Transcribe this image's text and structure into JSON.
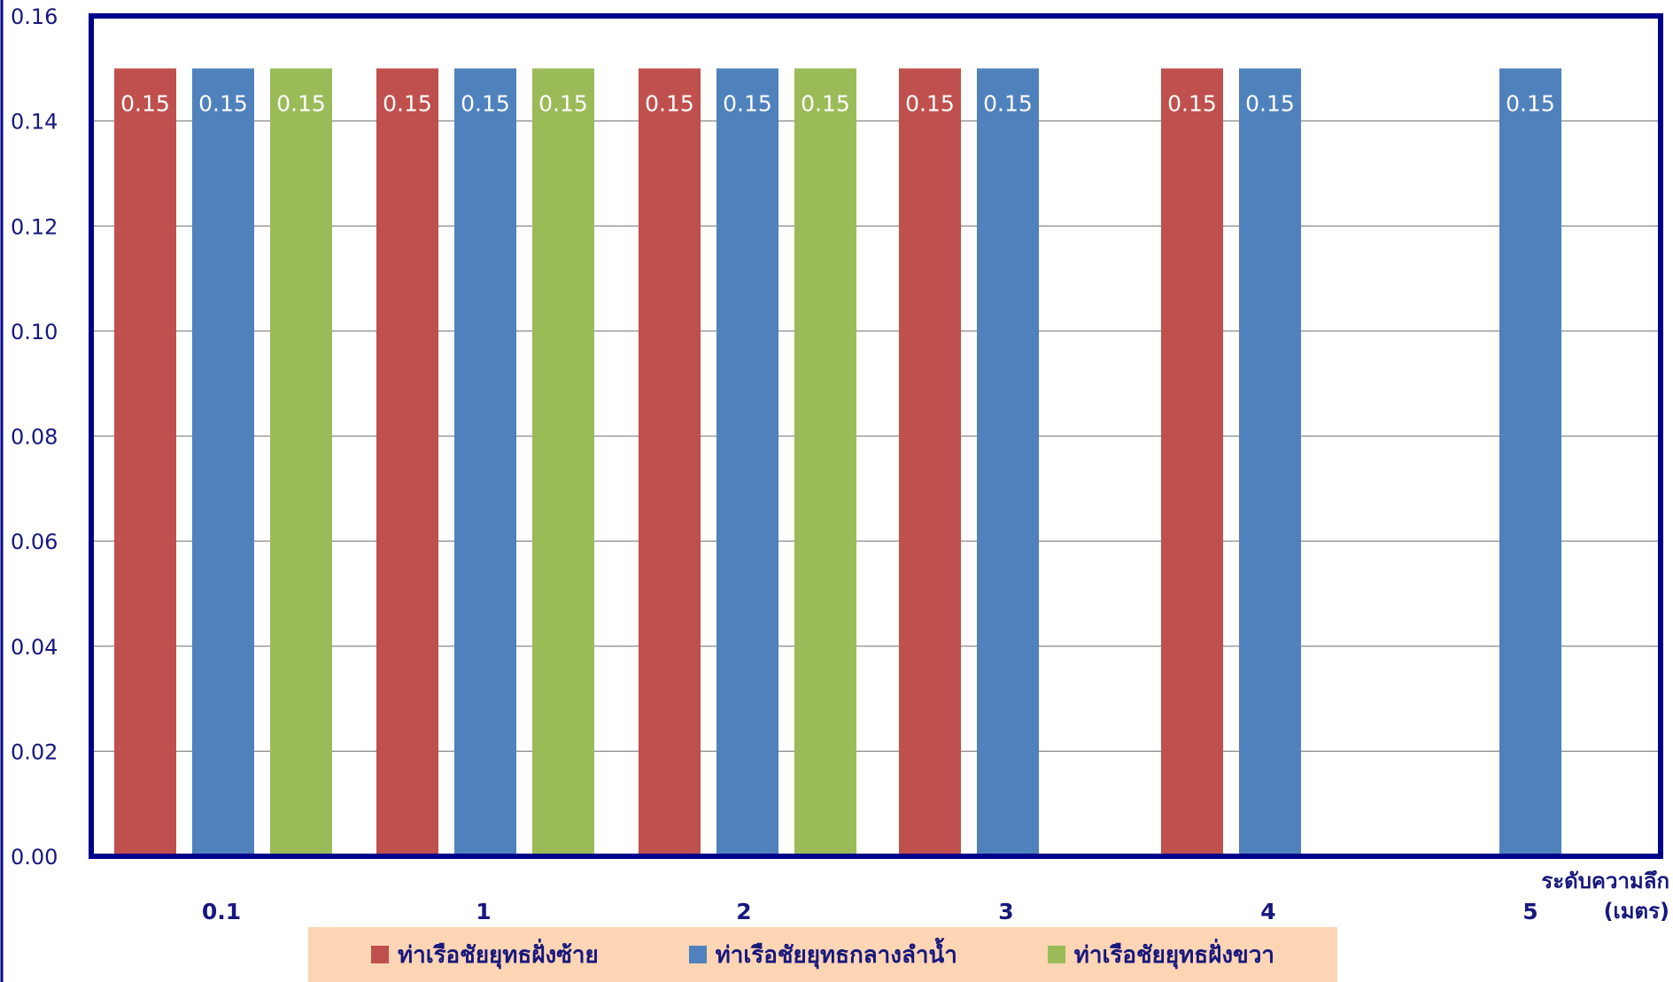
{
  "chart_data": {
    "type": "bar",
    "categories": [
      "0.1",
      "1",
      "2",
      "3",
      "4",
      "5"
    ],
    "series": [
      {
        "name": "ท่าเรือชัยยุทธฝั่งซ้าย",
        "color": "#c0504d",
        "values": [
          0.15,
          0.15,
          0.15,
          0.15,
          0.15,
          null
        ]
      },
      {
        "name": "ท่าเรือชัยยุทธกลางลำน้ำ",
        "color": "#4f81bd",
        "values": [
          0.15,
          0.15,
          0.15,
          0.15,
          0.15,
          0.15
        ]
      },
      {
        "name": "ท่าเรือชัยยุทธฝั่งขวา",
        "color": "#9bbb59",
        "values": [
          0.15,
          0.15,
          0.15,
          null,
          null,
          null
        ]
      }
    ],
    "ylim": [
      0,
      0.16
    ],
    "yticks": [
      "0.00",
      "0.02",
      "0.04",
      "0.06",
      "0.08",
      "0.10",
      "0.12",
      "0.14",
      "0.16"
    ],
    "ytick_values": [
      0,
      0.02,
      0.04,
      0.06,
      0.08,
      0.1,
      0.12,
      0.14,
      0.16
    ],
    "xlabel_line1": "ระดับความลึก",
    "xlabel_line2": "(เมตร)",
    "data_label_format": "0.15",
    "grid": true,
    "legend_position": "bottom",
    "axis_color": "#00008b",
    "text_color": "#17177d",
    "legend_bg": "#fcd5b4"
  }
}
